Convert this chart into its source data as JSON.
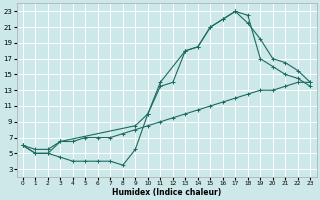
{
  "xlabel": "Humidex (Indice chaleur)",
  "bg_color": "#cde8e8",
  "line_color": "#1a6b60",
  "grid_color": "#ffffff",
  "xlim": [
    -0.5,
    23.5
  ],
  "ylim": [
    2,
    24
  ],
  "yticks": [
    3,
    5,
    7,
    9,
    11,
    13,
    15,
    17,
    19,
    21,
    23
  ],
  "xticks": [
    0,
    1,
    2,
    3,
    4,
    5,
    6,
    7,
    8,
    9,
    10,
    11,
    12,
    13,
    14,
    15,
    16,
    17,
    18,
    19,
    20,
    21,
    22,
    23
  ],
  "curve1_x": [
    0,
    1,
    2,
    3,
    4,
    5,
    6,
    7,
    8,
    9,
    10,
    11,
    12,
    13,
    14,
    15,
    16,
    17,
    18,
    19,
    20,
    21,
    22,
    23
  ],
  "curve1_y": [
    6,
    5,
    5,
    4.5,
    4,
    4,
    4,
    4,
    3.5,
    5.5,
    10,
    13.5,
    14,
    18,
    18.5,
    21,
    22,
    23,
    22.5,
    17,
    16,
    15,
    14.5,
    13.5
  ],
  "curve2_x": [
    0,
    1,
    2,
    3,
    9,
    10,
    11,
    13,
    14,
    15,
    16,
    17,
    18,
    19,
    20,
    21,
    22,
    23
  ],
  "curve2_y": [
    6,
    5,
    5,
    6.5,
    8.5,
    10,
    14,
    18,
    18.5,
    21,
    22,
    23,
    21.5,
    19.5,
    17,
    16.5,
    15.5,
    14
  ],
  "curve3_x": [
    0,
    1,
    2,
    3,
    4,
    5,
    6,
    7,
    8,
    9,
    10,
    11,
    12,
    13,
    14,
    15,
    16,
    17,
    18,
    19,
    20,
    21,
    22,
    23
  ],
  "curve3_y": [
    6,
    5.5,
    5.5,
    6.5,
    6.5,
    7,
    7,
    7,
    7.5,
    8,
    8.5,
    9,
    9.5,
    10,
    10.5,
    11,
    11.5,
    12,
    12.5,
    13,
    13,
    13.5,
    14,
    14
  ]
}
